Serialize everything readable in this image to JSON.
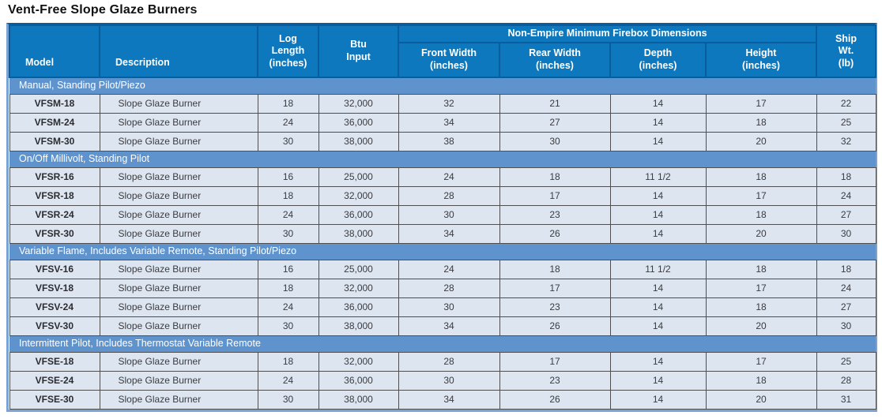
{
  "title": "Vent-Free Slope Glaze Burners",
  "colors": {
    "header_bg": "#0d78bd",
    "header_border": "#095d9c",
    "section_bg": "#5e93cd",
    "row_bg": "#dde6f0",
    "cell_border": "#4f4f52",
    "outer_border": "#79a3d4"
  },
  "table": {
    "group_header": "Non-Empire Minimum Firebox Dimensions",
    "header": {
      "model": "Model",
      "description": "Description",
      "log_length": "Log\nLength\n(inches)",
      "btu_input": "Btu\nInput",
      "front_width": "Front Width\n(inches)",
      "rear_width": "Rear Width\n(inches)",
      "depth": "Depth\n(inches)",
      "height": "Height\n(inches)",
      "ship_wt": "Ship\nWt.\n(lb)"
    },
    "sections": [
      {
        "label": "Manual, Standing Pilot/Piezo",
        "rows": [
          [
            "VFSM-18",
            "Slope Glaze Burner",
            "18",
            "32,000",
            "32",
            "21",
            "14",
            "17",
            "22"
          ],
          [
            "VFSM-24",
            "Slope Glaze Burner",
            "24",
            "36,000",
            "34",
            "27",
            "14",
            "18",
            "25"
          ],
          [
            "VFSM-30",
            "Slope Glaze Burner",
            "30",
            "38,000",
            "38",
            "30",
            "14",
            "20",
            "32"
          ]
        ]
      },
      {
        "label": "On/Off Millivolt, Standing Pilot",
        "rows": [
          [
            "VFSR-16",
            "Slope Glaze Burner",
            "16",
            "25,000",
            "24",
            "18",
            "11 1/2",
            "18",
            "18"
          ],
          [
            "VFSR-18",
            "Slope Glaze Burner",
            "18",
            "32,000",
            "28",
            "17",
            "14",
            "17",
            "24"
          ],
          [
            "VFSR-24",
            "Slope Glaze Burner",
            "24",
            "36,000",
            "30",
            "23",
            "14",
            "18",
            "27"
          ],
          [
            "VFSR-30",
            "Slope Glaze Burner",
            "30",
            "38,000",
            "34",
            "26",
            "14",
            "20",
            "30"
          ]
        ]
      },
      {
        "label": "Variable Flame, Includes Variable Remote, Standing Pilot/Piezo",
        "rows": [
          [
            "VFSV-16",
            "Slope Glaze Burner",
            "16",
            "25,000",
            "24",
            "18",
            "11 1/2",
            "18",
            "18"
          ],
          [
            "VFSV-18",
            "Slope Glaze Burner",
            "18",
            "32,000",
            "28",
            "17",
            "14",
            "17",
            "24"
          ],
          [
            "VFSV-24",
            "Slope Glaze Burner",
            "24",
            "36,000",
            "30",
            "23",
            "14",
            "18",
            "27"
          ],
          [
            "VFSV-30",
            "Slope Glaze Burner",
            "30",
            "38,000",
            "34",
            "26",
            "14",
            "20",
            "30"
          ]
        ]
      },
      {
        "label": "Intermittent Pilot, Includes Thermostat Variable Remote",
        "rows": [
          [
            "VFSE-18",
            "Slope Glaze Burner",
            "18",
            "32,000",
            "28",
            "17",
            "14",
            "17",
            "25"
          ],
          [
            "VFSE-24",
            "Slope Glaze Burner",
            "24",
            "36,000",
            "30",
            "23",
            "14",
            "18",
            "28"
          ],
          [
            "VFSE-30",
            "Slope Glaze Burner",
            "30",
            "38,000",
            "34",
            "26",
            "14",
            "20",
            "31"
          ]
        ]
      }
    ]
  }
}
